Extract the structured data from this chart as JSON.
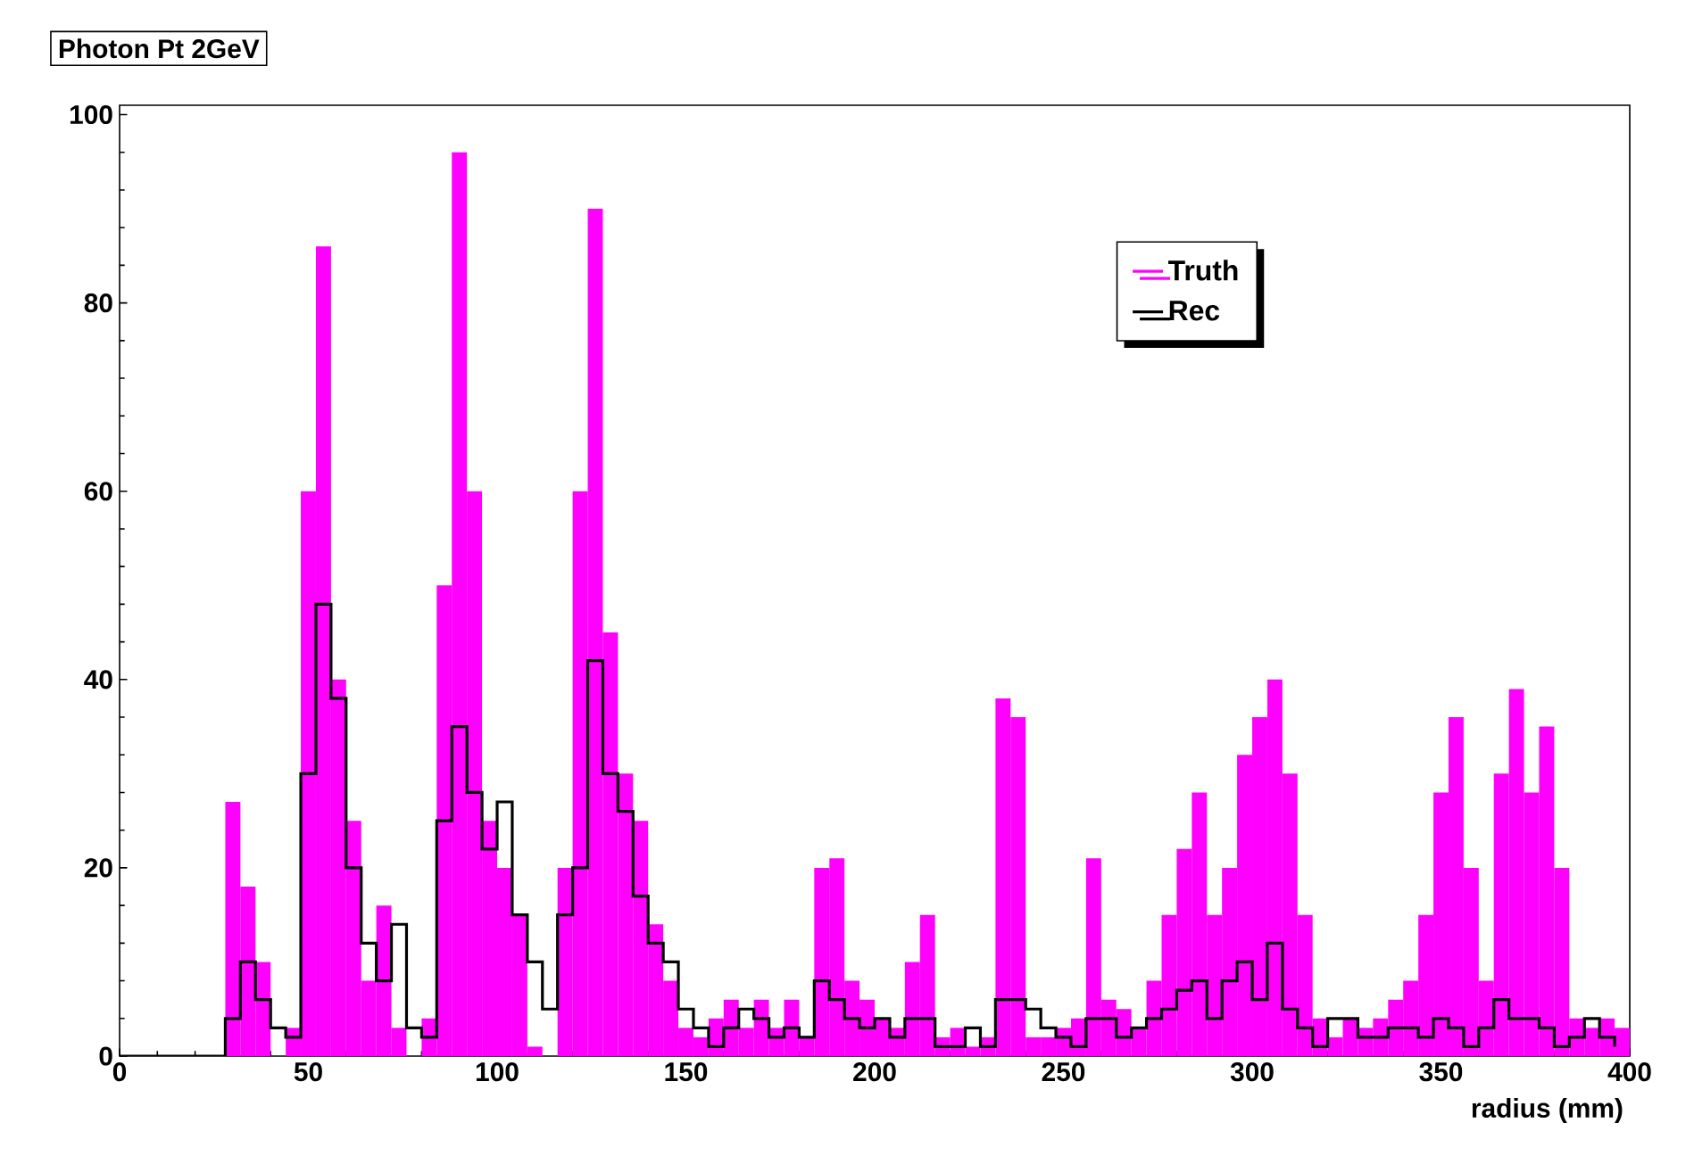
{
  "chart_data": {
    "type": "histogram",
    "title": "Photon Pt 2GeV",
    "xlabel": "radius (mm)",
    "bins": [
      0,
      4,
      8,
      12,
      16,
      20,
      24,
      28,
      32,
      36,
      40,
      44,
      48,
      52,
      56,
      60,
      64,
      68,
      72,
      76,
      80,
      84,
      88,
      92,
      96,
      100,
      104,
      108,
      112,
      116,
      120,
      124,
      128,
      132,
      136,
      140,
      144,
      148,
      152,
      156,
      160,
      164,
      168,
      172,
      176,
      180,
      184,
      188,
      192,
      196,
      200,
      204,
      208,
      212,
      216,
      220,
      224,
      228,
      232,
      236,
      240,
      244,
      248,
      252,
      256,
      260,
      264,
      268,
      272,
      276,
      280,
      284,
      288,
      292,
      296,
      300,
      304,
      308,
      312,
      316,
      320,
      324,
      328,
      332,
      336,
      340,
      344,
      348,
      352,
      356,
      360,
      364,
      368,
      372,
      376,
      380,
      384,
      388,
      392,
      396,
      400
    ],
    "series": [
      {
        "name": "Truth",
        "color": "#ff00ff",
        "values": [
          0,
          0,
          0,
          0,
          0,
          0,
          0,
          27,
          18,
          10,
          0,
          3,
          60,
          86,
          40,
          25,
          8,
          16,
          3,
          0,
          4,
          50,
          96,
          60,
          25,
          20,
          15,
          1,
          0,
          20,
          60,
          90,
          45,
          30,
          25,
          14,
          8,
          3,
          2,
          4,
          6,
          3,
          6,
          3,
          6,
          2,
          20,
          21,
          8,
          6,
          4,
          3,
          10,
          15,
          2,
          3,
          1,
          2,
          38,
          36,
          2,
          2,
          3,
          4,
          21,
          6,
          5,
          3,
          8,
          15,
          22,
          28,
          15,
          20,
          32,
          36,
          40,
          30,
          15,
          4,
          2,
          4,
          3,
          4,
          6,
          8,
          15,
          28,
          36,
          20,
          8,
          30,
          39,
          28,
          35,
          20,
          4,
          3,
          4,
          3
        ]
      },
      {
        "name": "Rec",
        "type": "step",
        "color": "#000000",
        "x": [
          0,
          4,
          8,
          12,
          16,
          20,
          24,
          28,
          32,
          36,
          40,
          44,
          48,
          52,
          56,
          60,
          64,
          68,
          72,
          76,
          80,
          84,
          88,
          92,
          96,
          100,
          104,
          108,
          112,
          116,
          120,
          124,
          128,
          132,
          136,
          140,
          144,
          148,
          152,
          156,
          160,
          164,
          168,
          172,
          176,
          180,
          184,
          188,
          192,
          196,
          200,
          204,
          208,
          212,
          216,
          220,
          224,
          228,
          232,
          236,
          240,
          244,
          248,
          252,
          256,
          260,
          264,
          268,
          272,
          276,
          280,
          284,
          288,
          292,
          296,
          300,
          304,
          308,
          312,
          316,
          320,
          324,
          328,
          332,
          336,
          340,
          344,
          348,
          352,
          356,
          360,
          364,
          368,
          372,
          376,
          380,
          384,
          388,
          392,
          396
        ],
        "values": [
          0,
          0,
          0,
          0,
          0,
          0,
          0,
          4,
          10,
          6,
          3,
          2,
          30,
          48,
          38,
          20,
          12,
          8,
          14,
          3,
          2,
          25,
          35,
          28,
          22,
          27,
          15,
          10,
          5,
          15,
          20,
          42,
          30,
          26,
          17,
          12,
          10,
          5,
          3,
          1,
          3,
          5,
          4,
          2,
          3,
          2,
          8,
          6,
          4,
          3,
          4,
          2,
          4,
          4,
          1,
          1,
          3,
          1,
          6,
          6,
          5,
          3,
          2,
          1,
          4,
          4,
          2,
          3,
          4,
          5,
          7,
          8,
          4,
          8,
          10,
          6,
          12,
          5,
          3,
          1,
          4,
          4,
          2,
          2,
          3,
          3,
          2,
          4,
          3,
          1,
          3,
          6,
          4,
          4,
          3,
          1,
          2,
          4,
          2,
          1
        ]
      }
    ],
    "xlim": [
      0,
      400
    ],
    "ylim": [
      0,
      101
    ],
    "xticks": [
      0,
      50,
      100,
      150,
      200,
      250,
      300,
      350,
      400
    ],
    "yticks": [
      0,
      20,
      40,
      60,
      80,
      100
    ],
    "legend": "top right"
  }
}
